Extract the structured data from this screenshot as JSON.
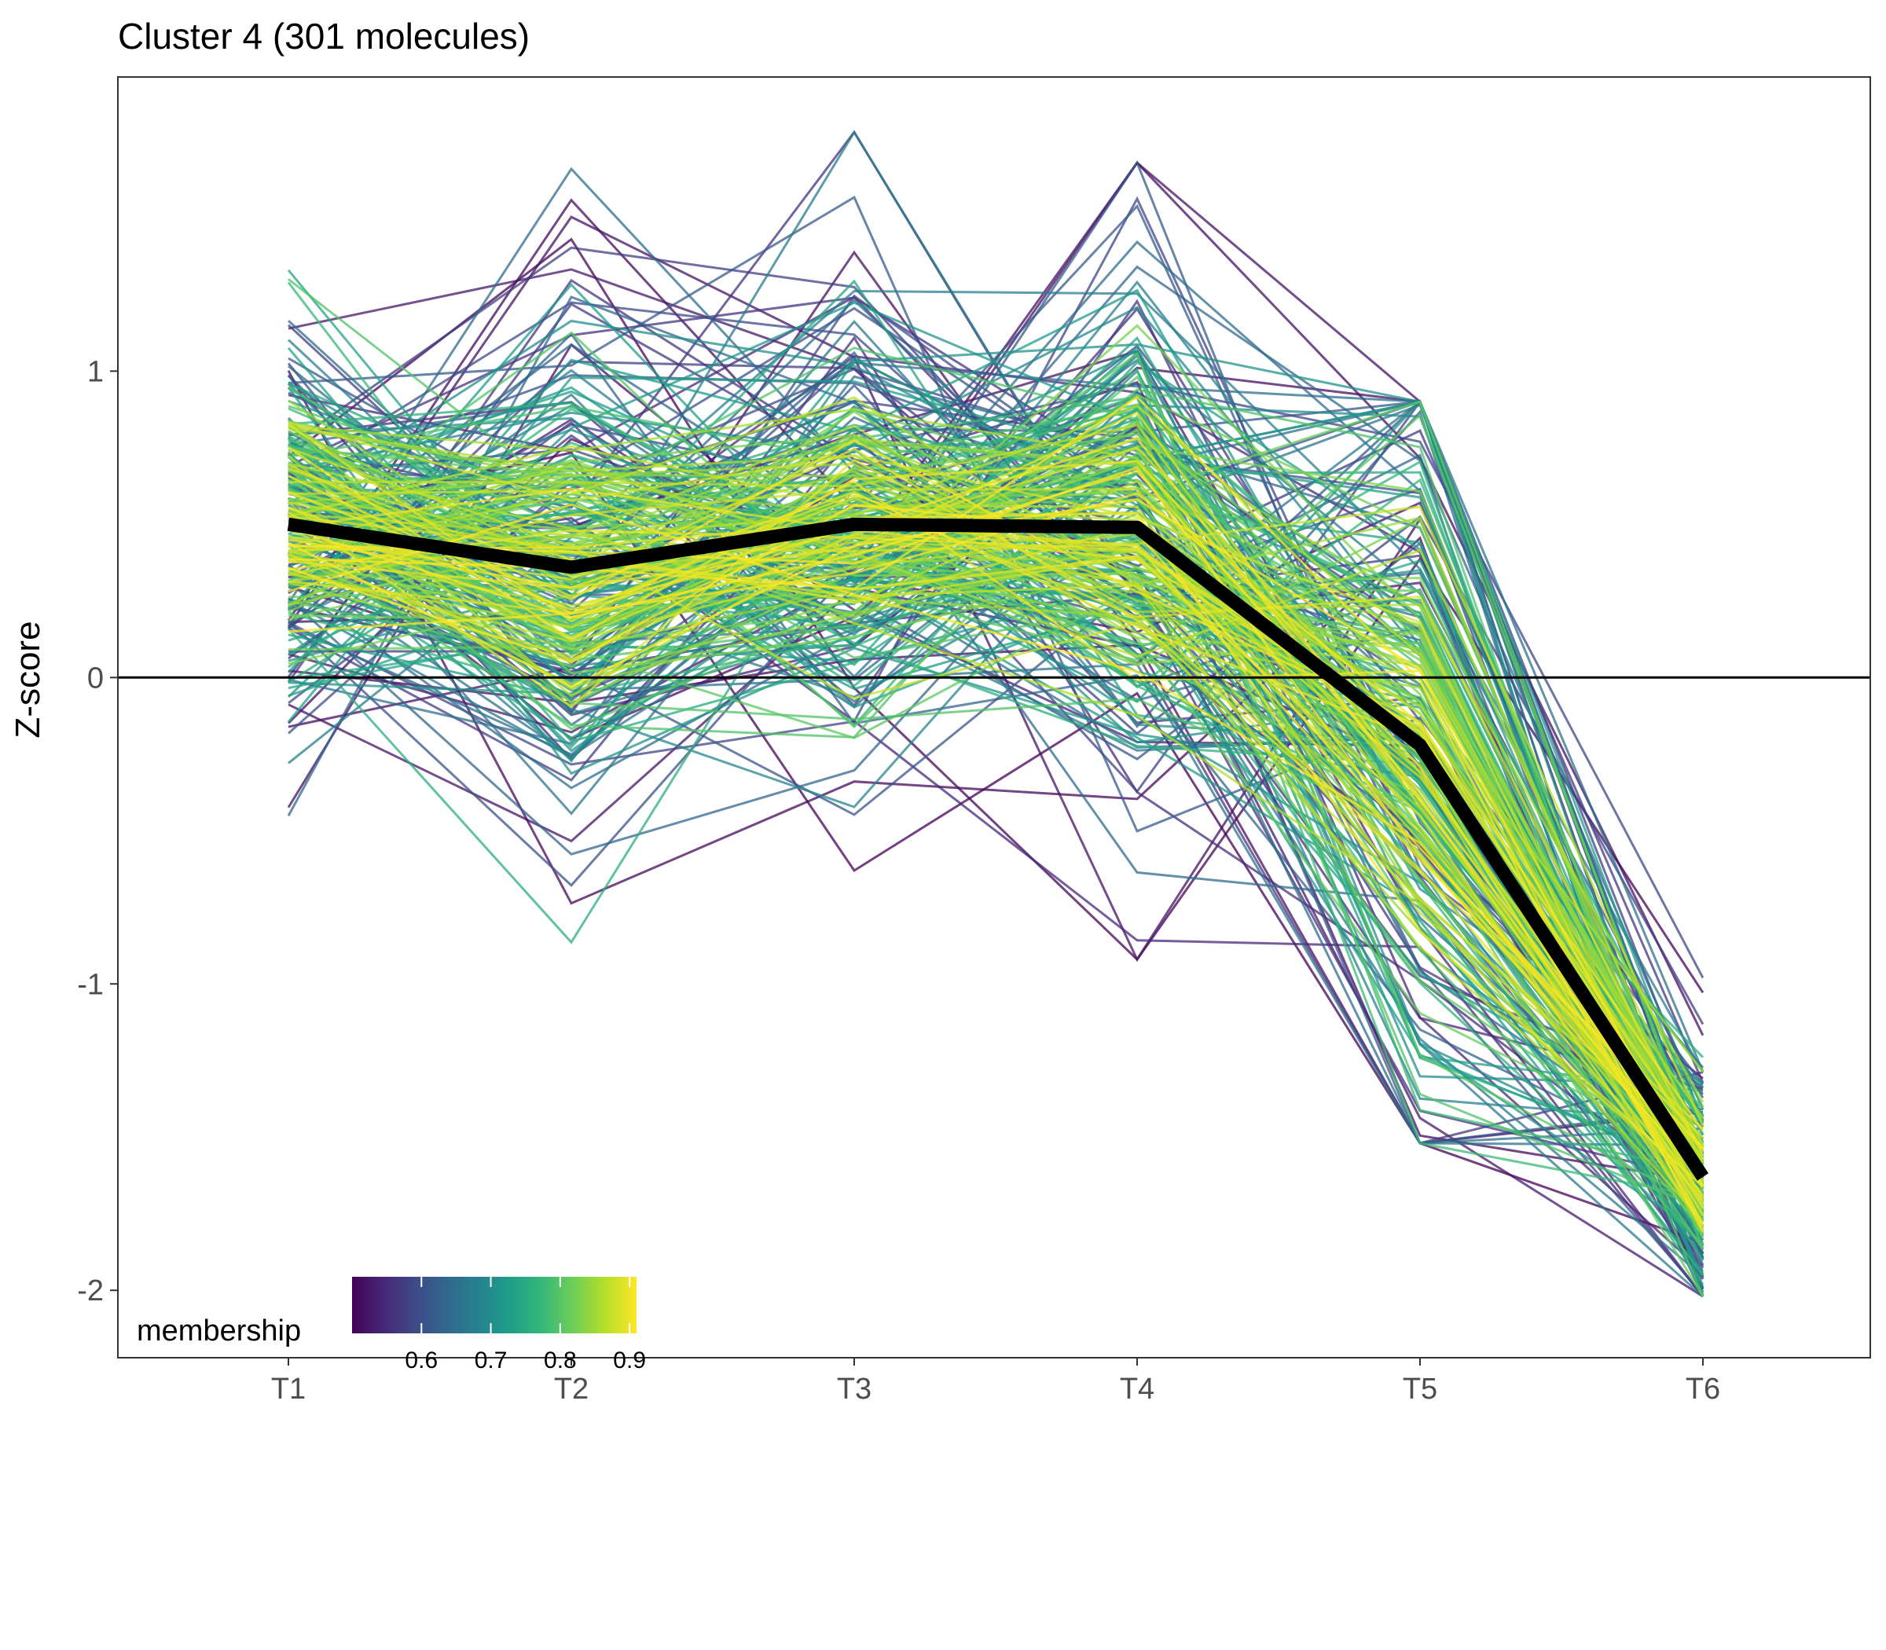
{
  "chart_data": {
    "type": "line",
    "title": "Cluster 4 (301 molecules)",
    "xlabel": "",
    "ylabel": "Z-score",
    "categories": [
      "T1",
      "T2",
      "T3",
      "T4",
      "T5",
      "T6"
    ],
    "y_ticks": [
      "-2",
      "-1",
      "0",
      "1"
    ],
    "y_tick_values": [
      -2,
      -1,
      0,
      1
    ],
    "ylim": [
      -2.22,
      1.96
    ],
    "reference_line_y": 0,
    "n_molecules": 301,
    "mean_profile": {
      "values": [
        0.5,
        0.36,
        0.5,
        0.49,
        -0.22,
        -1.63
      ],
      "color": "#000000"
    },
    "profile_distribution": {
      "description_level": "approximate per-timepoint spread of individual profiles",
      "mean": [
        0.5,
        0.36,
        0.5,
        0.49,
        -0.22,
        -1.63
      ],
      "sd": [
        0.33,
        0.38,
        0.34,
        0.45,
        0.6,
        0.2
      ],
      "min": [
        -0.82,
        -0.95,
        -0.63,
        -0.92,
        -1.52,
        -2.02
      ],
      "max": [
        1.49,
        1.66,
        1.78,
        1.68,
        0.9,
        -0.98
      ]
    },
    "color_scale": {
      "name": "membership",
      "palette": "viridis",
      "range": [
        0.5,
        0.91
      ],
      "ticks": [
        "0.6",
        "0.7",
        "0.8",
        "0.9"
      ],
      "tick_values": [
        0.6,
        0.7,
        0.8,
        0.9
      ],
      "stops": [
        "#440154",
        "#482878",
        "#3e4a89",
        "#31688e",
        "#26828e",
        "#1f9e89",
        "#35b779",
        "#6ece58",
        "#b5de2b",
        "#fde725"
      ]
    },
    "legend_position": "bottom-left",
    "grid": false
  }
}
